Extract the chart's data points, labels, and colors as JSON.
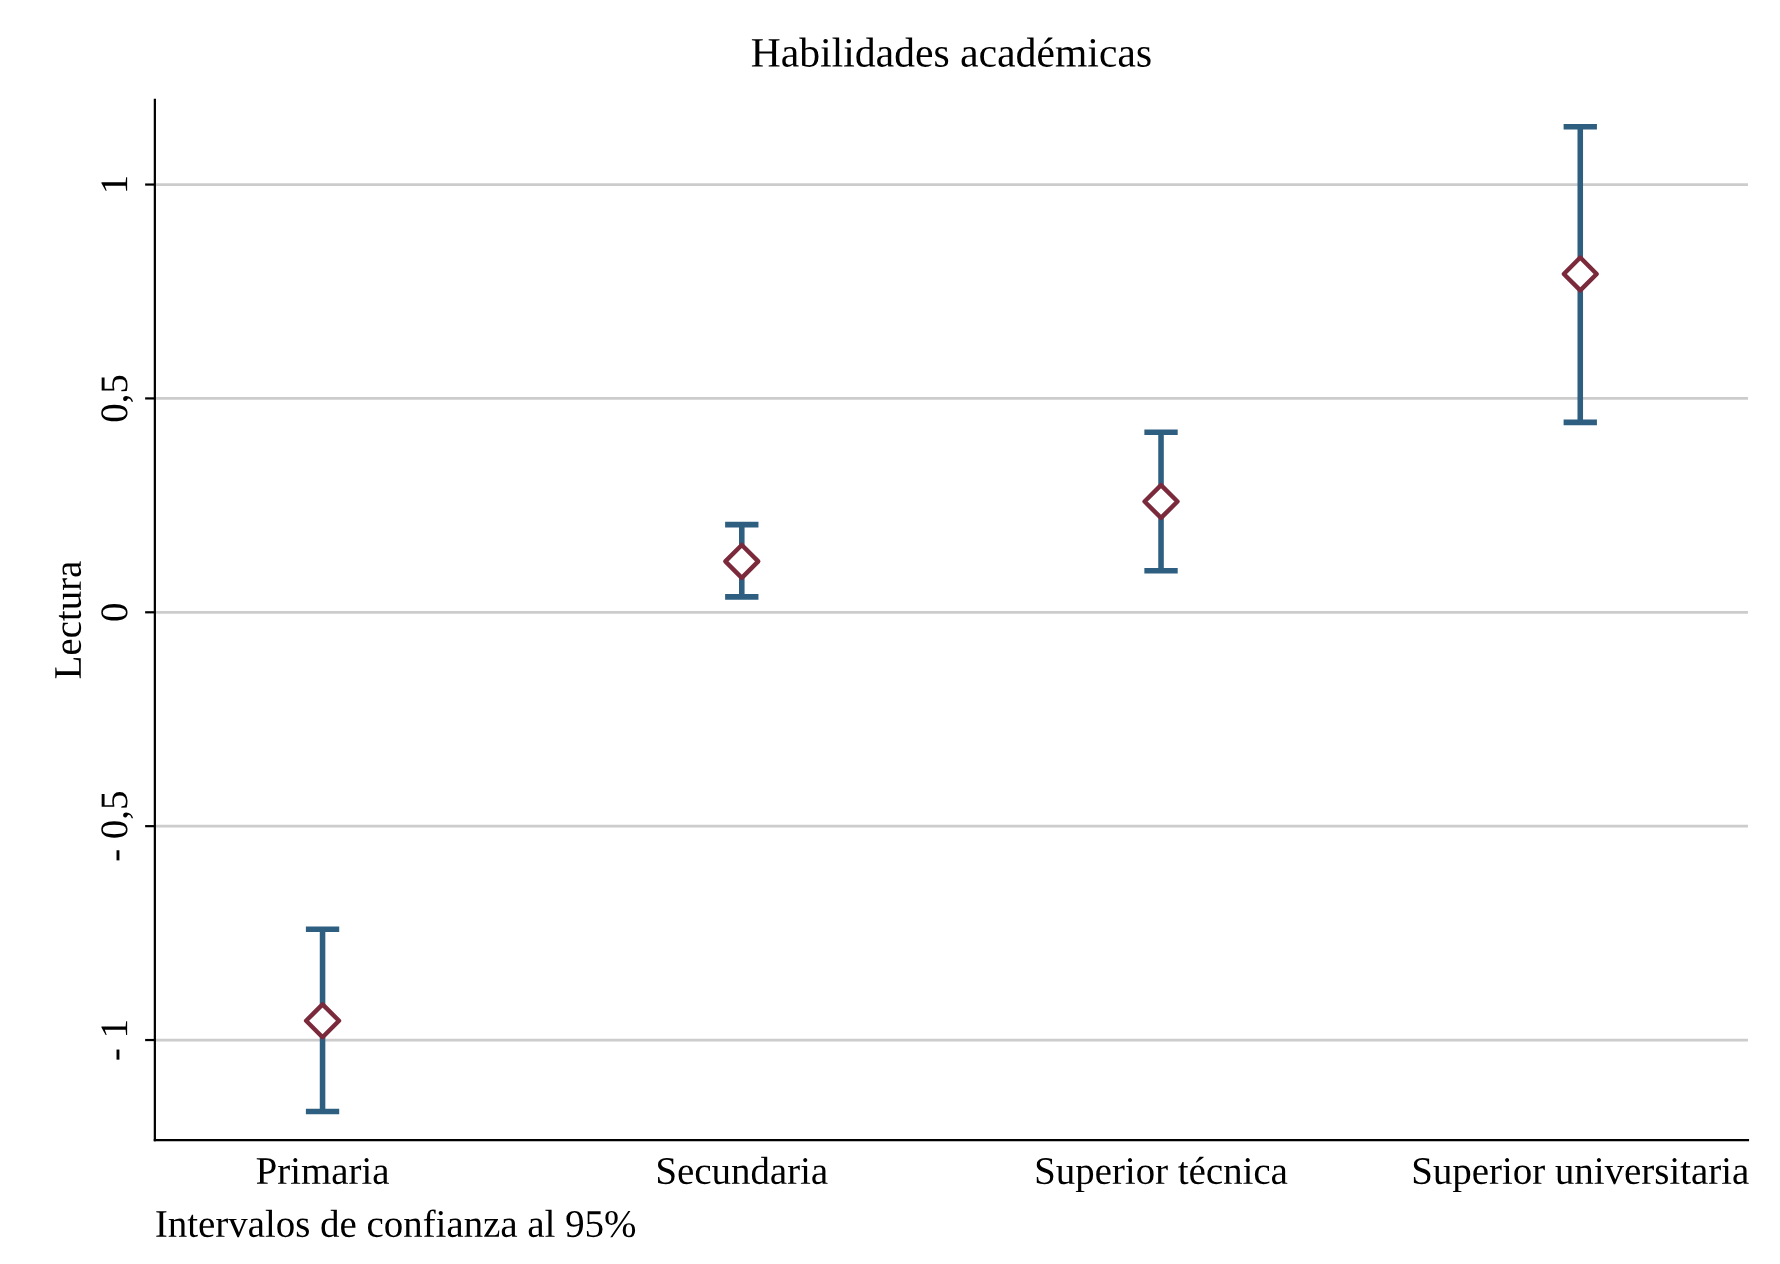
{
  "chart_data": {
    "type": "scatter",
    "title": "Habilidades académicas",
    "ylabel": "Lectura",
    "categories": [
      "Primaria",
      "Secundaria",
      "Superior técnica",
      "Superior universitaria"
    ],
    "series": [
      {
        "color": "#7b2a3c",
        "values": [
          -0.955,
          0.119,
          0.259,
          0.791
        ],
        "errors": [
          [
            -1.167,
            -0.741
          ],
          [
            0.036,
            0.205
          ],
          [
            0.097,
            0.421
          ],
          [
            0.444,
            1.135
          ]
        ]
      }
    ],
    "ylim": [
      -1.234,
      1.198
    ],
    "yticks": [
      {
        "value": -1,
        "label": "- 1"
      },
      {
        "value": -0.5,
        "label": "- 0,5"
      },
      {
        "value": 0,
        "label": "0"
      },
      {
        "value": 0.5,
        "label": "0,5"
      },
      {
        "value": 1,
        "label": "1"
      }
    ],
    "grid": "y",
    "marker": "diamond",
    "legend": false,
    "annotations": [
      "Intervalos de confianza al 95%"
    ]
  }
}
